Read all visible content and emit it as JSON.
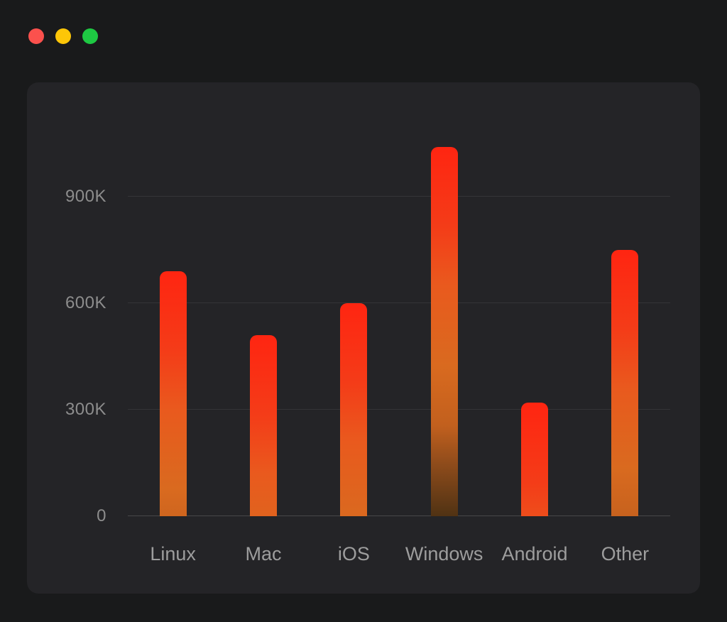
{
  "window": {
    "controls": [
      {
        "name": "close-button",
        "color": "#fb514d"
      },
      {
        "name": "minimize-button",
        "color": "#fdc608"
      },
      {
        "name": "maximize-button",
        "color": "#1ec943"
      }
    ]
  },
  "chart_data": {
    "type": "bar",
    "title": "",
    "xlabel": "",
    "ylabel": "",
    "categories": [
      "Linux",
      "Mac",
      "iOS",
      "Windows",
      "Android",
      "Other"
    ],
    "values": [
      690000,
      510000,
      600000,
      1040000,
      320000,
      750000
    ],
    "ylim": [
      0,
      1120000
    ],
    "yticks": [
      {
        "value": 0,
        "label": "0"
      },
      {
        "value": 300000,
        "label": "300K"
      },
      {
        "value": 600000,
        "label": "600K"
      },
      {
        "value": 900000,
        "label": "900K"
      }
    ],
    "grid": true,
    "legend": false,
    "bar_gradient_bottom_to_top": [
      "#34240f",
      "#543414",
      "#8d4b1b",
      "#c2601e",
      "#d96a1f",
      "#e95a1e",
      "#f43c18",
      "#ff2511"
    ],
    "colors": {
      "page_background": "#191a1b",
      "panel_background": "#242427",
      "gridline": "rgba(255,255,255,0.08)",
      "y_label": "#8d8d8d",
      "x_label": "#9d9d9d"
    }
  }
}
